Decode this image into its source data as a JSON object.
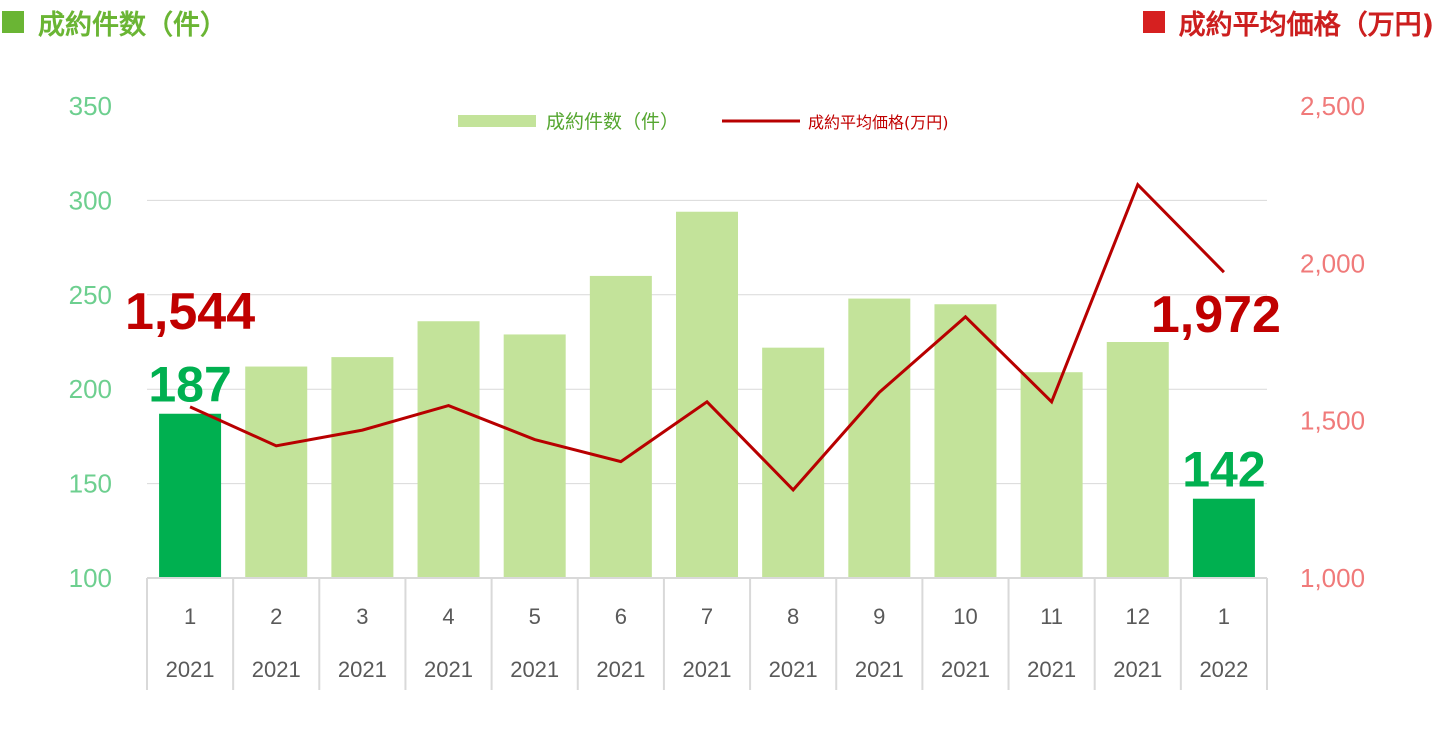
{
  "header": {
    "left_title": "成約件数（件）",
    "right_title": "成約平均価格（万円)"
  },
  "colors": {
    "bar": "#c3e39a",
    "bar_highlight": "#00b050",
    "line": "#b80000",
    "left_axis_text": "#6dcf8f",
    "right_axis_text": "#f07a7a",
    "grid": "#d9d9d9",
    "highlight_count_label": "#00b050",
    "highlight_price_label": "#c00000"
  },
  "chart_data": {
    "type": "bar+line",
    "categories": [
      {
        "month": "1",
        "year": "2021"
      },
      {
        "month": "2",
        "year": "2021"
      },
      {
        "month": "3",
        "year": "2021"
      },
      {
        "month": "4",
        "year": "2021"
      },
      {
        "month": "5",
        "year": "2021"
      },
      {
        "month": "6",
        "year": "2021"
      },
      {
        "month": "7",
        "year": "2021"
      },
      {
        "month": "8",
        "year": "2021"
      },
      {
        "month": "9",
        "year": "2021"
      },
      {
        "month": "10",
        "year": "2021"
      },
      {
        "month": "11",
        "year": "2021"
      },
      {
        "month": "12",
        "year": "2021"
      },
      {
        "month": "1",
        "year": "2022"
      }
    ],
    "series": [
      {
        "name": "成約件数（件）",
        "type": "bar",
        "axis": "left",
        "values": [
          187,
          212,
          217,
          236,
          229,
          260,
          294,
          222,
          248,
          245,
          209,
          225,
          142
        ],
        "highlight_indices": [
          0,
          12
        ]
      },
      {
        "name": "成約平均価格(万円)",
        "type": "line",
        "axis": "right",
        "values": [
          1544,
          1420,
          1470,
          1548,
          1440,
          1370,
          1560,
          1280,
          1590,
          1830,
          1560,
          2250,
          1972
        ]
      }
    ],
    "y_left": {
      "min": 100,
      "max": 350,
      "ticks": [
        "100",
        "150",
        "200",
        "250",
        "300",
        "350"
      ]
    },
    "y_right": {
      "min": 1000,
      "max": 2500,
      "ticks": [
        "1,000",
        "1,500",
        "2,000",
        "2,500"
      ]
    },
    "annotations": [
      {
        "index": 0,
        "series": "line",
        "text": "1,544"
      },
      {
        "index": 0,
        "series": "bar",
        "text": "187"
      },
      {
        "index": 12,
        "series": "line",
        "text": "1,972"
      },
      {
        "index": 12,
        "series": "bar",
        "text": "142"
      }
    ],
    "legend_position": "top-center",
    "grid": true
  }
}
